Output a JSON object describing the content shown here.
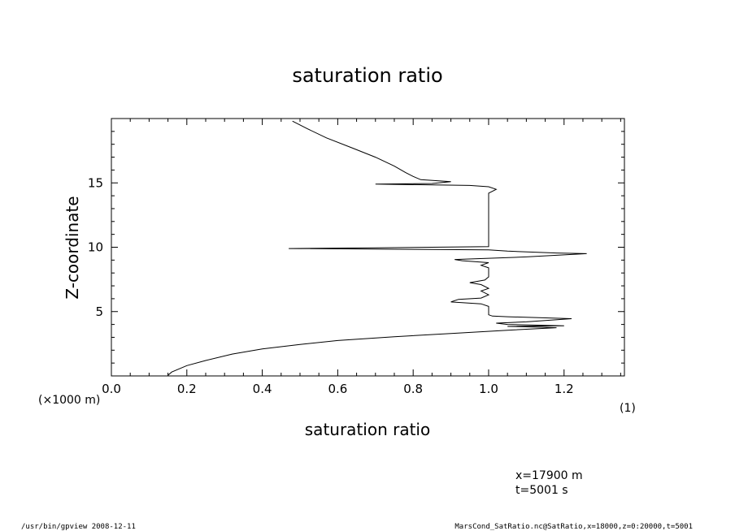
{
  "chart_data": {
    "type": "line",
    "title": "saturation ratio",
    "xlabel": "saturation ratio",
    "ylabel": "Z-coordinate",
    "x_unit": "(1)",
    "y_unit": "(×1000 m)",
    "xlim": [
      0.0,
      1.36
    ],
    "ylim": [
      0,
      20
    ],
    "x_ticks": [
      0.0,
      0.2,
      0.4,
      0.6,
      0.8,
      1.0,
      1.2
    ],
    "x_tick_labels": [
      "0.0",
      "0.2",
      "0.4",
      "0.6",
      "0.8",
      "1.0",
      "1.2"
    ],
    "y_ticks": [
      5,
      10,
      15
    ],
    "y_tick_labels": [
      "5",
      "10",
      "15"
    ],
    "grid": false,
    "series": [
      {
        "points": [
          [
            0.15,
            0.05
          ],
          [
            0.16,
            0.3
          ],
          [
            0.2,
            0.8
          ],
          [
            0.25,
            1.2
          ],
          [
            0.32,
            1.7
          ],
          [
            0.4,
            2.1
          ],
          [
            0.5,
            2.45
          ],
          [
            0.6,
            2.75
          ],
          [
            0.75,
            3.05
          ],
          [
            0.9,
            3.3
          ],
          [
            1.05,
            3.55
          ],
          [
            1.18,
            3.75
          ],
          [
            1.12,
            3.8
          ],
          [
            1.05,
            3.85
          ],
          [
            1.2,
            3.9
          ],
          [
            1.05,
            4.0
          ],
          [
            1.02,
            4.1
          ],
          [
            1.1,
            4.2
          ],
          [
            1.22,
            4.45
          ],
          [
            1.05,
            4.6
          ],
          [
            1.01,
            4.65
          ],
          [
            1.0,
            4.75
          ],
          [
            1.0,
            5.4
          ],
          [
            0.98,
            5.6
          ],
          [
            0.9,
            5.75
          ],
          [
            0.92,
            5.95
          ],
          [
            0.98,
            6.05
          ],
          [
            1.0,
            6.3
          ],
          [
            0.98,
            6.6
          ],
          [
            1.0,
            6.8
          ],
          [
            0.98,
            7.1
          ],
          [
            0.95,
            7.25
          ],
          [
            0.99,
            7.45
          ],
          [
            1.0,
            7.7
          ],
          [
            1.0,
            8.4
          ],
          [
            0.98,
            8.6
          ],
          [
            1.0,
            8.8
          ],
          [
            0.93,
            8.95
          ],
          [
            0.91,
            9.05
          ],
          [
            1.1,
            9.25
          ],
          [
            1.26,
            9.5
          ],
          [
            1.18,
            9.55
          ],
          [
            1.05,
            9.7
          ],
          [
            1.0,
            9.8
          ],
          [
            0.47,
            9.9
          ],
          [
            0.7,
            9.95
          ],
          [
            1.0,
            10.05
          ],
          [
            1.0,
            13.0
          ],
          [
            1.0,
            14.2
          ],
          [
            1.02,
            14.5
          ],
          [
            1.0,
            14.7
          ],
          [
            0.95,
            14.8
          ],
          [
            0.7,
            14.9
          ],
          [
            0.85,
            14.95
          ],
          [
            0.9,
            15.1
          ],
          [
            0.82,
            15.25
          ],
          [
            0.8,
            15.5
          ],
          [
            0.78,
            15.8
          ],
          [
            0.75,
            16.3
          ],
          [
            0.7,
            17.0
          ],
          [
            0.64,
            17.7
          ],
          [
            0.57,
            18.5
          ],
          [
            0.52,
            19.2
          ],
          [
            0.48,
            19.8
          ]
        ]
      }
    ]
  },
  "footer": {
    "coords_x": "x=17900  m",
    "coords_t": "t=5001  s",
    "program": "/usr/bin/gpview   2008-12-11",
    "source": "MarsCond_SatRatio.nc@SatRatio,x=18000,z=0:20000,t=5001"
  }
}
